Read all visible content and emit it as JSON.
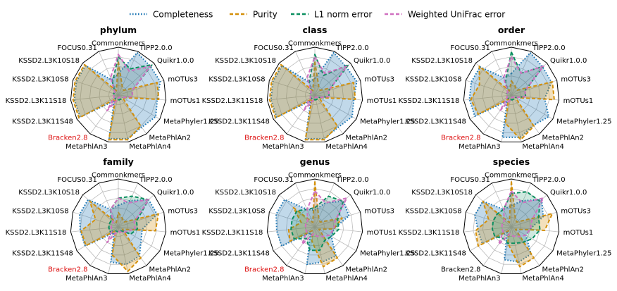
{
  "colors": {
    "completeness": "#1f77b4",
    "purity": "#d4900a",
    "l1": "#0a8f5f",
    "unifrac": "#d070c0",
    "highlight": "#dd1111"
  },
  "chart_data": {
    "type": "radar",
    "axes": [
      "Commonkmers",
      "TIPP2.0.0",
      "Quikr1.0.0",
      "mOTUs3",
      "mOTUs1",
      "MetaPhyler1.25",
      "MetaPhlAn2",
      "MetaPhlAn4",
      "MetaPhlAn3",
      "Bracken2.8",
      "KSSD2.L3K11S48",
      "KSSD2.L3K11S18",
      "KSSD2.L3K10S8",
      "KSSD2.L3K10S18",
      "FOCUS0.31"
    ],
    "rlim": [
      0,
      1
    ],
    "grid": true,
    "legend": {
      "placement": "top-center",
      "entries": [
        {
          "key": "completeness",
          "label": "Completeness",
          "style": "dotted"
        },
        {
          "key": "purity",
          "label": "Purity",
          "style": "dashed"
        },
        {
          "key": "l1",
          "label": "L1 norm error",
          "style": "dashed"
        },
        {
          "key": "unifrac",
          "label": "Weighted UniFrac error",
          "style": "dashed"
        }
      ]
    },
    "panels": [
      {
        "title": "phylum",
        "highlight": [
          "Bracken2.8"
        ],
        "series": [
          {
            "key": "completeness",
            "values": [
              0.45,
              0.97,
              0.9,
              0.92,
              0.82,
              0.9,
              0.83,
              0.93,
              0.93,
              0.15,
              0.92,
              0.92,
              0.92,
              0.92,
              0.35
            ]
          },
          {
            "key": "purity",
            "values": [
              0.7,
              0.2,
              0.15,
              0.85,
              0.85,
              0.1,
              0.8,
              0.95,
              0.95,
              0.1,
              0.95,
              0.95,
              0.95,
              0.95,
              0.1
            ]
          },
          {
            "key": "l1",
            "values": [
              0.8,
              0.6,
              0.95,
              0.3,
              0.3,
              0.1,
              0.1,
              0.1,
              0.1,
              0.1,
              0.1,
              0.1,
              0.1,
              0.1,
              0.3
            ]
          },
          {
            "key": "unifrac",
            "values": [
              0.85,
              0.55,
              0.9,
              0.3,
              0.3,
              0.1,
              0.05,
              0.05,
              0.1,
              0.4,
              0.1,
              0.1,
              0.1,
              0.1,
              0.4
            ]
          }
        ]
      },
      {
        "title": "class",
        "highlight": [
          "Bracken2.8"
        ],
        "series": [
          {
            "key": "completeness",
            "values": [
              0.35,
              0.97,
              0.88,
              0.92,
              0.82,
              0.9,
              0.83,
              0.93,
              0.93,
              0.15,
              0.92,
              0.92,
              0.92,
              0.92,
              0.3
            ]
          },
          {
            "key": "purity",
            "values": [
              0.7,
              0.2,
              0.15,
              0.85,
              0.85,
              0.1,
              0.8,
              0.95,
              0.95,
              0.1,
              0.95,
              0.95,
              0.95,
              0.95,
              0.1
            ]
          },
          {
            "key": "l1",
            "values": [
              0.85,
              0.45,
              0.95,
              0.3,
              0.3,
              0.1,
              0.1,
              0.1,
              0.1,
              0.1,
              0.1,
              0.1,
              0.1,
              0.1,
              0.3
            ]
          },
          {
            "key": "unifrac",
            "values": [
              0.8,
              0.5,
              0.9,
              0.3,
              0.3,
              0.1,
              0.05,
              0.05,
              0.1,
              0.4,
              0.1,
              0.1,
              0.1,
              0.1,
              0.4
            ]
          }
        ]
      },
      {
        "title": "order",
        "highlight": [
          "Bracken2.8"
        ],
        "series": [
          {
            "key": "completeness",
            "values": [
              0.45,
              0.97,
              0.88,
              0.88,
              0.7,
              0.9,
              0.78,
              0.9,
              0.9,
              0.15,
              0.88,
              0.88,
              0.88,
              0.88,
              0.4
            ]
          },
          {
            "key": "purity",
            "values": [
              0.3,
              0.2,
              0.15,
              0.9,
              0.9,
              0.1,
              0.8,
              0.95,
              0.6,
              0.1,
              0.8,
              0.85,
              0.7,
              0.9,
              0.1
            ]
          },
          {
            "key": "l1",
            "values": [
              0.9,
              0.5,
              0.9,
              0.3,
              0.3,
              0.1,
              0.1,
              0.1,
              0.1,
              0.1,
              0.1,
              0.1,
              0.1,
              0.1,
              0.3
            ]
          },
          {
            "key": "unifrac",
            "values": [
              0.8,
              0.5,
              0.9,
              0.3,
              0.3,
              0.1,
              0.05,
              0.05,
              0.1,
              0.4,
              0.1,
              0.1,
              0.1,
              0.1,
              0.4
            ]
          }
        ]
      },
      {
        "title": "family",
        "highlight": [
          "Bracken2.8"
        ],
        "series": [
          {
            "key": "completeness",
            "values": [
              0.45,
              0.6,
              0.85,
              0.85,
              0.5,
              0.55,
              0.75,
              0.8,
              0.75,
              0.15,
              0.8,
              0.8,
              0.85,
              0.85,
              0.4
            ]
          },
          {
            "key": "purity",
            "values": [
              0.3,
              0.2,
              0.15,
              0.88,
              0.78,
              0.1,
              0.8,
              0.95,
              0.6,
              0.1,
              0.78,
              0.78,
              0.5,
              0.8,
              0.1
            ]
          },
          {
            "key": "l1",
            "values": [
              0.6,
              0.7,
              0.85,
              0.4,
              0.4,
              0.3,
              0.1,
              0.1,
              0.1,
              0.1,
              0.2,
              0.2,
              0.2,
              0.2,
              0.4
            ]
          },
          {
            "key": "unifrac",
            "values": [
              0.6,
              0.55,
              0.85,
              0.35,
              0.35,
              0.2,
              0.15,
              0.1,
              0.1,
              0.4,
              0.15,
              0.15,
              0.15,
              0.15,
              0.4
            ]
          }
        ]
      },
      {
        "title": "genus",
        "highlight": [
          "Bracken2.8"
        ],
        "series": [
          {
            "key": "completeness",
            "values": [
              0.35,
              0.55,
              0.8,
              0.75,
              0.4,
              0.4,
              0.75,
              0.75,
              0.8,
              0.15,
              0.8,
              0.8,
              0.85,
              0.85,
              0.4
            ]
          },
          {
            "key": "purity",
            "values": [
              0.95,
              0.2,
              0.15,
              0.6,
              0.4,
              0.1,
              0.8,
              0.85,
              0.3,
              0.1,
              0.6,
              0.55,
              0.3,
              0.6,
              0.1
            ]
          },
          {
            "key": "l1",
            "values": [
              0.4,
              0.7,
              0.8,
              0.5,
              0.5,
              0.4,
              0.35,
              0.5,
              0.5,
              0.3,
              0.5,
              0.5,
              0.5,
              0.5,
              0.4
            ]
          },
          {
            "key": "unifrac",
            "values": [
              0.75,
              0.55,
              0.9,
              0.45,
              0.4,
              0.35,
              0.25,
              0.2,
              0.15,
              0.45,
              0.2,
              0.2,
              0.2,
              0.2,
              0.4
            ]
          }
        ]
      },
      {
        "title": "species",
        "highlight": [],
        "series": [
          {
            "key": "completeness",
            "values": [
              0.45,
              0.6,
              0.85,
              0.7,
              0.4,
              0.35,
              0.7,
              0.75,
              0.7,
              0.15,
              0.7,
              0.7,
              0.8,
              0.8,
              0.4
            ]
          },
          {
            "key": "purity",
            "values": [
              0.95,
              0.2,
              0.15,
              0.9,
              0.7,
              0.1,
              0.8,
              0.85,
              0.35,
              0.1,
              0.8,
              0.75,
              0.5,
              0.8,
              0.1
            ]
          },
          {
            "key": "l1",
            "values": [
              0.7,
              0.8,
              0.8,
              0.6,
              0.6,
              0.5,
              0.4,
              0.35,
              0.35,
              0.3,
              0.4,
              0.4,
              0.4,
              0.4,
              0.4
            ]
          },
          {
            "key": "unifrac",
            "values": [
              0.75,
              0.55,
              0.9,
              0.45,
              0.4,
              0.35,
              0.25,
              0.2,
              0.15,
              0.45,
              0.2,
              0.2,
              0.2,
              0.2,
              0.4
            ]
          }
        ]
      }
    ]
  }
}
